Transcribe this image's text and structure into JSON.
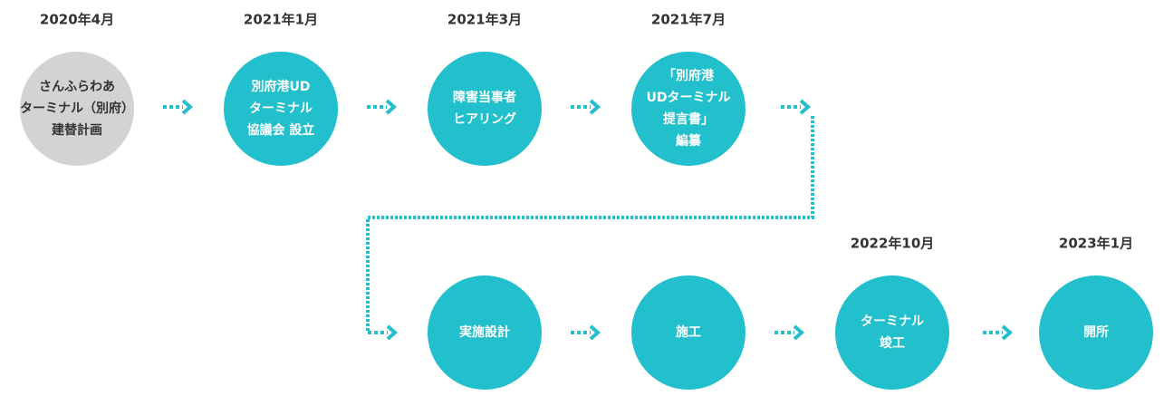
{
  "steps": [
    {
      "date": "2020年4月",
      "lines": [
        "さんふらわあ",
        "ターミナル（別府）",
        "建替計画"
      ]
    },
    {
      "date": "2021年1月",
      "lines": [
        "別府港UD",
        "ターミナル",
        "協議会 設立"
      ]
    },
    {
      "date": "2021年3月",
      "lines": [
        "障害当事者",
        "ヒアリング"
      ]
    },
    {
      "date": "2021年7月",
      "lines": [
        "「別府港",
        "UDターミナル",
        "提言書」",
        "編纂"
      ]
    },
    {
      "lines": [
        "実施設計"
      ]
    },
    {
      "lines": [
        "施工"
      ]
    },
    {
      "date": "2022年10月",
      "lines": [
        "ターミナル",
        "竣工"
      ]
    },
    {
      "date": "2023年1月",
      "lines": [
        "開所"
      ]
    }
  ]
}
